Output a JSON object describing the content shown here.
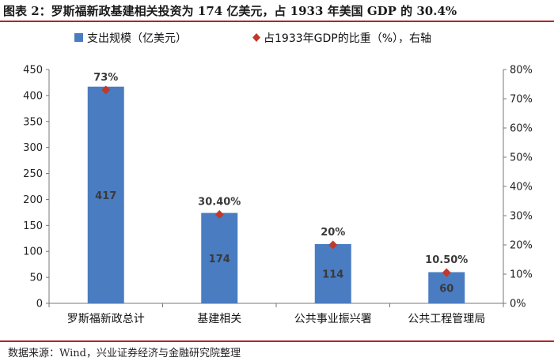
{
  "figure": {
    "title": "图表 2：罗斯福新政基建相关投资为 174 亿美元，占 1933 年美国 GDP 的 30.4%",
    "source": "数据来源：Wind，兴业证券经济与金融研究院整理"
  },
  "chart_data": {
    "type": "bar",
    "categories": [
      "罗斯福新政总计",
      "基建相关",
      "公共事业振兴署",
      "公共工程管理局"
    ],
    "series": [
      {
        "name": "支出规模（亿美元）",
        "type": "bar",
        "axis": "left",
        "values": [
          417,
          174,
          114,
          60
        ],
        "labels": [
          "417",
          "174",
          "114",
          "60"
        ],
        "color": "#4a7cc1"
      },
      {
        "name": "占1933年GDP的比重（%），右轴",
        "type": "scatter",
        "axis": "right",
        "values": [
          73,
          30.4,
          20,
          10.5
        ],
        "labels": [
          "73%",
          "30.40%",
          "20%",
          "10.50%"
        ],
        "color": "#c0392b"
      }
    ],
    "ylim": [
      0,
      450
    ],
    "yticks": [
      "0",
      "50",
      "100",
      "150",
      "200",
      "250",
      "300",
      "350",
      "400",
      "450"
    ],
    "y2lim": [
      0,
      80
    ],
    "y2ticks": [
      "0%",
      "10%",
      "20%",
      "30%",
      "40%",
      "50%",
      "60%",
      "70%",
      "80%"
    ],
    "legend": "top",
    "grid": false
  }
}
